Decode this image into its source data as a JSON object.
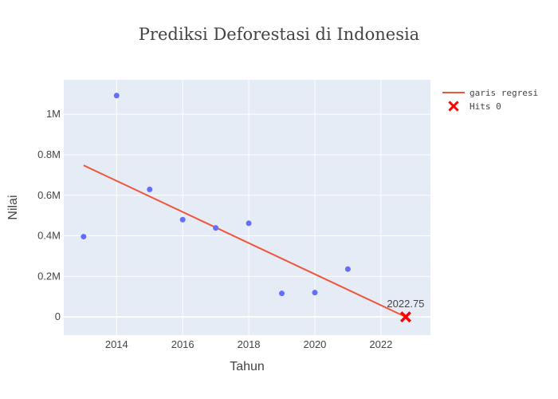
{
  "chart_data": {
    "type": "scatter",
    "title": "Prediksi Deforestasi di Indonesia",
    "xlabel": "Tahun",
    "ylabel": "Nilai",
    "xlim": [
      2012.4,
      2023.5
    ],
    "ylim": [
      -90000,
      1170000
    ],
    "x_ticks": [
      2014,
      2016,
      2018,
      2020,
      2022
    ],
    "y_ticks": [
      {
        "value": 0,
        "label": "0"
      },
      {
        "value": 200000,
        "label": "0.2M"
      },
      {
        "value": 400000,
        "label": "0.4M"
      },
      {
        "value": 600000,
        "label": "0.6M"
      },
      {
        "value": 800000,
        "label": "0.8M"
      },
      {
        "value": 1000000,
        "label": "1M"
      }
    ],
    "grid": true,
    "legend_position": "top-right",
    "colors": {
      "plot_bg": "#e5ecf6",
      "grid": "#ffffff",
      "points": "#636efa",
      "regression": "#ef553b",
      "marker": "#ff0000"
    },
    "series": [
      {
        "type": "scatter",
        "color": "#636efa",
        "x": [
          2013,
          2014,
          2015,
          2016,
          2017,
          2018,
          2019,
          2020,
          2021
        ],
        "y": [
          396000,
          1092000,
          629000,
          480000,
          439000,
          462000,
          116000,
          120000,
          236000
        ]
      },
      {
        "type": "line",
        "name": "garis regresi",
        "color": "#ef553b",
        "x": [
          2013,
          2022.75
        ],
        "y": [
          748000,
          0
        ]
      },
      {
        "type": "marker",
        "name": "Hits 0",
        "symbol": "x",
        "color": "#ff0000",
        "x": [
          2022.75
        ],
        "y": [
          0
        ]
      }
    ],
    "annotations": [
      {
        "text": "2022.75",
        "x": 2022.75,
        "y": 0
      }
    ]
  }
}
